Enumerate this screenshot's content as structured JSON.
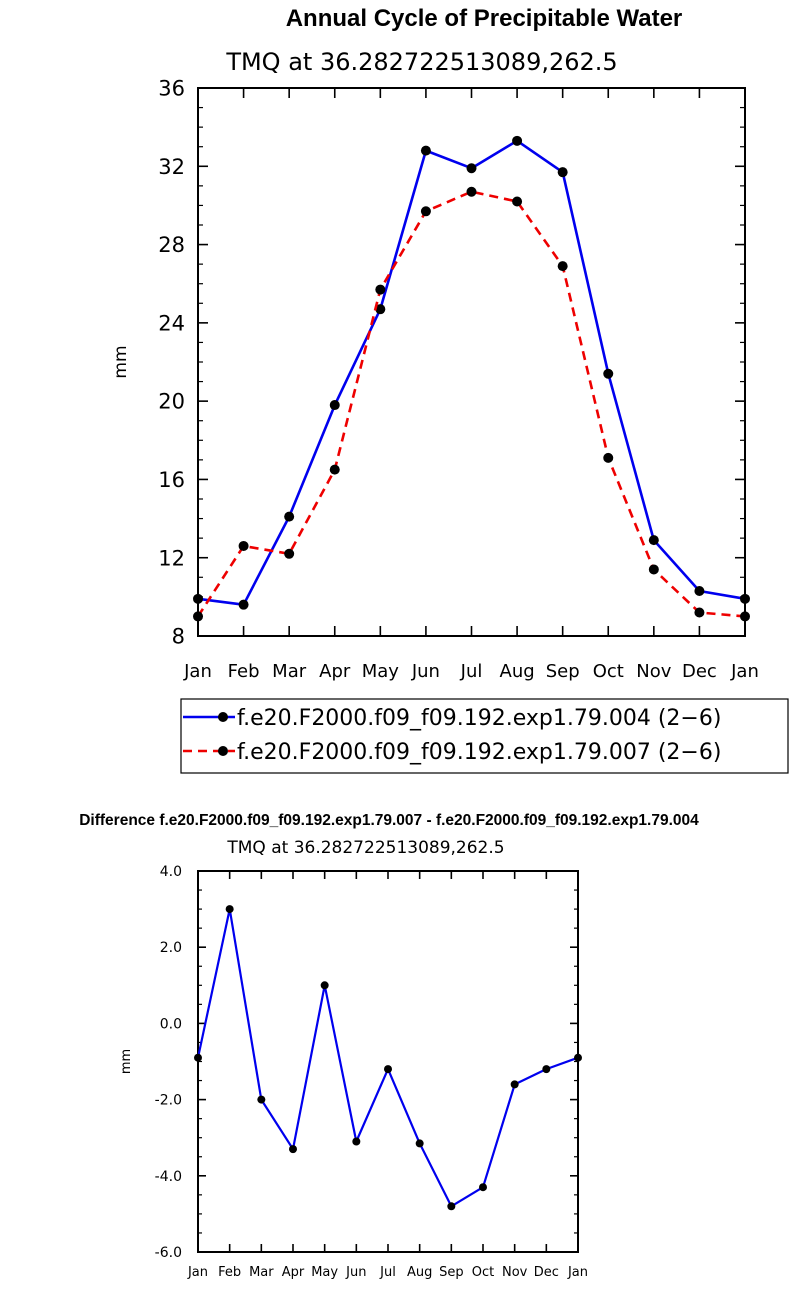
{
  "chart_data": [
    {
      "type": "line",
      "title": "Annual Cycle of Precipitable Water",
      "subtitle": "TMQ at 36.282722513089,262.5",
      "xlabel": "",
      "ylabel": "mm",
      "categories": [
        "Jan",
        "Feb",
        "Mar",
        "Apr",
        "May",
        "Jun",
        "Jul",
        "Aug",
        "Sep",
        "Oct",
        "Nov",
        "Dec",
        "Jan"
      ],
      "ylim": [
        8,
        36
      ],
      "yticks": [
        "8",
        "12",
        "16",
        "20",
        "24",
        "28",
        "32",
        "36"
      ],
      "grid": false,
      "series": [
        {
          "name": "f.e20.F2000.f09_f09.192.exp1.79.004 (2−6)",
          "color": "#0000ee",
          "dash": "solid",
          "values": [
            9.9,
            9.6,
            14.1,
            19.8,
            24.7,
            32.8,
            31.9,
            33.3,
            31.7,
            21.4,
            12.9,
            10.3,
            9.9
          ]
        },
        {
          "name": "f.e20.F2000.f09_f09.192.exp1.79.007 (2−6)",
          "color": "#ee0000",
          "dash": "dashed",
          "values": [
            9.0,
            12.6,
            12.2,
            16.5,
            25.7,
            29.7,
            30.7,
            30.2,
            26.9,
            17.1,
            11.4,
            9.2,
            9.0
          ]
        }
      ],
      "legend": "bottom"
    },
    {
      "type": "line",
      "title": "Difference f.e20.F2000.f09_f09.192.exp1.79.007 - f.e20.F2000.f09_f09.192.exp1.79.004",
      "subtitle": "TMQ at 36.282722513089,262.5",
      "xlabel": "",
      "ylabel": "mm",
      "categories": [
        "Jan",
        "Feb",
        "Mar",
        "Apr",
        "May",
        "Jun",
        "Jul",
        "Aug",
        "Sep",
        "Oct",
        "Nov",
        "Dec",
        "Jan"
      ],
      "ylim": [
        -6,
        4
      ],
      "yticks": [
        "-6.0",
        "-4.0",
        "-2.0",
        "0.0",
        "2.0",
        "4.0"
      ],
      "grid": false,
      "series": [
        {
          "name": "difference",
          "color": "#0000ee",
          "dash": "solid",
          "values": [
            -0.9,
            3.0,
            -2.0,
            -3.3,
            1.0,
            -3.1,
            -1.2,
            -3.15,
            -4.8,
            -4.3,
            -1.6,
            -1.2,
            -0.9
          ]
        }
      ]
    }
  ]
}
